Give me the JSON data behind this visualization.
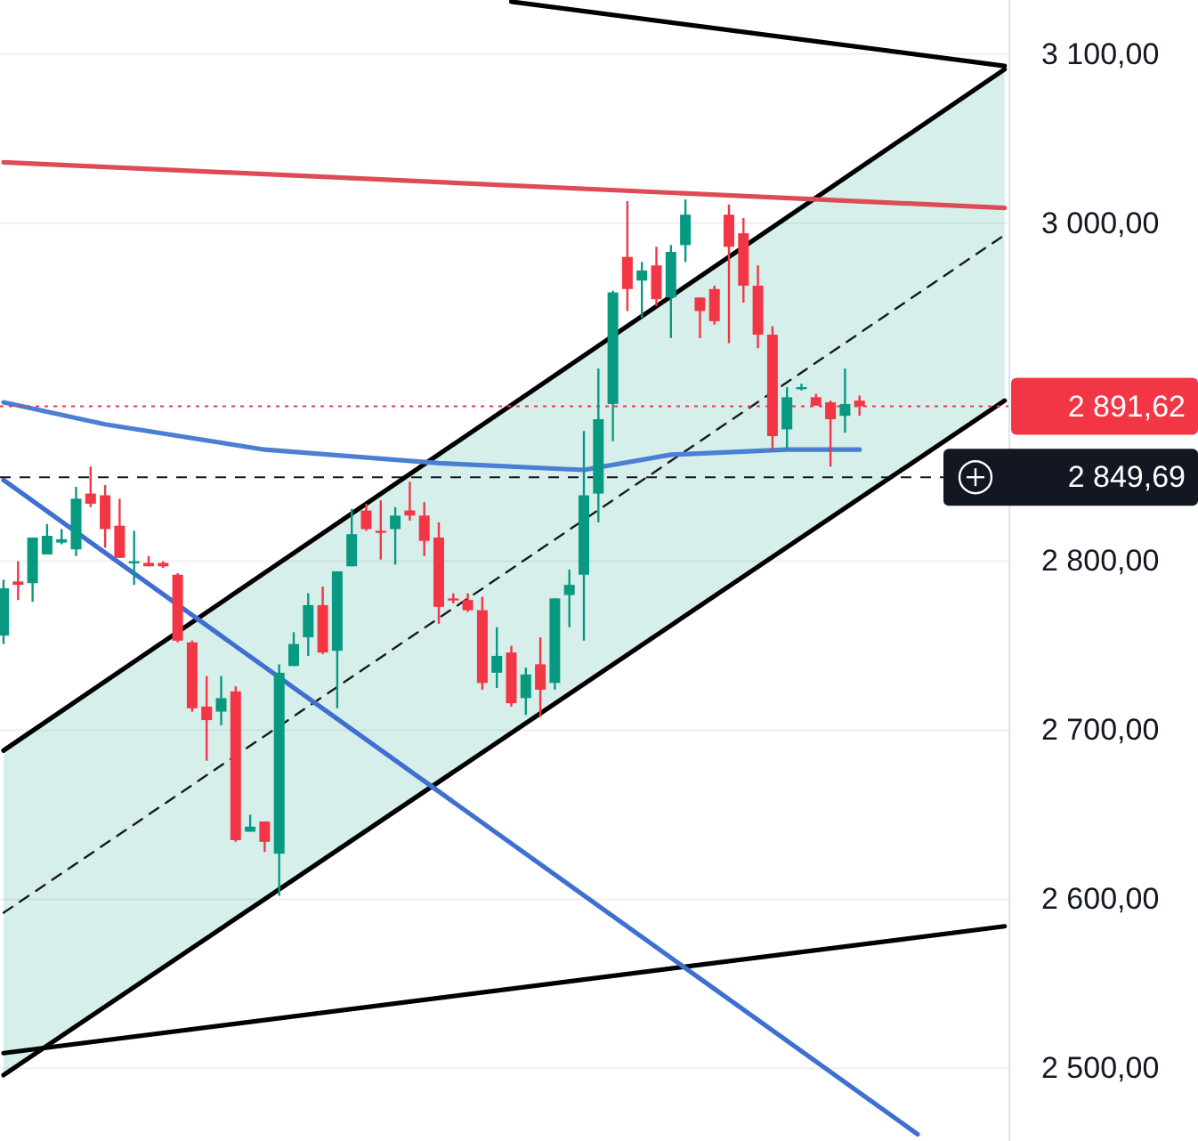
{
  "chart_data": {
    "type": "candlestick",
    "categories": [
      null,
      null,
      null,
      null,
      null,
      null,
      null,
      null,
      null,
      null,
      null,
      null,
      null,
      null,
      null,
      null,
      null,
      null,
      null,
      null,
      null,
      null,
      null,
      null,
      null,
      null,
      null,
      null,
      null,
      null,
      null,
      null,
      null,
      null,
      null,
      null,
      null,
      null,
      null,
      null,
      null,
      null,
      null,
      null,
      null,
      null,
      null,
      null,
      null,
      null,
      null,
      null,
      null,
      null,
      null,
      null,
      null,
      null,
      null,
      null,
      null,
      null,
      null,
      null,
      null,
      null,
      null,
      null,
      null,
      null
    ],
    "ohlc": [
      [
        2756,
        2789,
        2751,
        2784
      ],
      [
        2788,
        2800,
        2777,
        2786
      ],
      [
        2787,
        2814,
        2776,
        2814
      ],
      [
        2804,
        2822,
        2804,
        2815
      ],
      [
        2811,
        2819,
        2810,
        2813
      ],
      [
        2807,
        2844,
        2803,
        2837
      ],
      [
        2840,
        2856,
        2832,
        2834
      ],
      [
        2839,
        2845,
        2808,
        2819
      ],
      [
        2821,
        2837,
        2802,
        2802
      ],
      [
        2799,
        2818,
        2786,
        2800
      ],
      [
        2799,
        2803,
        2797,
        2797
      ],
      [
        2799,
        2800,
        2796,
        2797
      ],
      [
        2792,
        2793,
        2752,
        2753
      ],
      [
        2752,
        2753,
        2711,
        2713
      ],
      [
        2714,
        2732,
        2682,
        2706
      ],
      [
        2711,
        2732,
        2703,
        2719
      ],
      [
        2723,
        2726,
        2634,
        2635
      ],
      [
        2640,
        2650,
        2640,
        2643
      ],
      [
        2646,
        2646,
        2628,
        2634
      ],
      [
        2627,
        2739,
        2602,
        2734
      ],
      [
        2738,
        2758,
        2738,
        2751
      ],
      [
        2755,
        2781,
        2744,
        2774
      ],
      [
        2774,
        2785,
        2745,
        2746
      ],
      [
        2747,
        2794,
        2713,
        2794
      ],
      [
        2797,
        2831,
        2797,
        2816
      ],
      [
        2830,
        2834,
        2818,
        2819
      ],
      [
        2818,
        2836,
        2801,
        2817
      ],
      [
        2819,
        2832,
        2798,
        2827
      ],
      [
        2830,
        2847,
        2824,
        2827
      ],
      [
        2827,
        2835,
        2803,
        2812
      ],
      [
        2814,
        2823,
        2763,
        2773
      ],
      [
        2778,
        2781,
        2775,
        2777
      ],
      [
        2777,
        2781,
        2770,
        2771
      ],
      [
        2771,
        2779,
        2724,
        2728
      ],
      [
        2734,
        2761,
        2725,
        2744
      ],
      [
        2746,
        2750,
        2714,
        2716
      ],
      [
        2719,
        2737,
        2709,
        2733
      ],
      [
        2739,
        2755,
        2708,
        2724
      ],
      [
        2728,
        2778,
        2724,
        2778
      ],
      [
        2780,
        2795,
        2761,
        2786
      ],
      [
        2792,
        2877,
        2753,
        2839
      ],
      [
        2840,
        2914,
        2823,
        2884
      ],
      [
        2893,
        2960,
        2871,
        2959
      ],
      [
        2980,
        3013,
        2948,
        2961
      ],
      [
        2966,
        2977,
        2944,
        2972
      ],
      [
        2975,
        2986,
        2951,
        2955
      ],
      [
        2956,
        2987,
        2932,
        2983
      ],
      [
        2987,
        3014,
        2977,
        3005
      ],
      [
        2956,
        2956,
        2932,
        2948
      ],
      [
        2961,
        2963,
        2940,
        2942
      ],
      [
        3005,
        3011,
        2929,
        2986
      ],
      [
        2994,
        3003,
        2953,
        2963
      ],
      [
        2963,
        2975,
        2926,
        2934
      ],
      [
        2934,
        2939,
        2866,
        2874
      ],
      [
        2878,
        2903,
        2866,
        2897
      ],
      [
        2902,
        2905,
        2901,
        2903
      ],
      [
        2897,
        2899,
        2892,
        2892
      ],
      [
        2894,
        2895,
        2856,
        2884
      ],
      [
        2886,
        2914,
        2876,
        2893
      ],
      [
        2895,
        2898,
        2886,
        2891.62
      ],
      null,
      null,
      null,
      null,
      null,
      null,
      null,
      null,
      null,
      null
    ],
    "colors": [
      "#089981",
      "#f23645",
      "#089981",
      "#089981",
      "#089981",
      "#089981",
      "#f23645",
      "#f23645",
      "#f23645",
      "#089981",
      "#f23645",
      "#f23645",
      "#f23645",
      "#f23645",
      "#f23645",
      "#089981",
      "#f23645",
      "#089981",
      "#f23645",
      "#089981",
      "#089981",
      "#089981",
      "#f23645",
      "#089981",
      "#089981",
      "#f23645",
      "#f23645",
      "#089981",
      "#f23645",
      "#f23645",
      "#f23645",
      "#f23645",
      "#f23645",
      "#f23645",
      "#089981",
      "#f23645",
      "#089981",
      "#f23645",
      "#089981",
      "#089981",
      "#089981",
      "#089981",
      "#089981",
      "#f23645",
      "#089981",
      "#f23645",
      "#089981",
      "#089981",
      "#f23645",
      "#f23645",
      "#f23645",
      "#f23645",
      "#f23645",
      "#f23645",
      "#089981",
      "#089981",
      "#f23645",
      "#f23645",
      "#089981",
      "#f23645",
      null,
      null,
      null,
      null,
      null,
      null,
      null,
      null,
      null,
      null
    ],
    "series": [
      {
        "type": "line",
        "color": "#1a1a1a",
        "line_style": "dashed",
        "values": [
          2592,
          null,
          null,
          null,
          null,
          null,
          null,
          null,
          null,
          null,
          null,
          null,
          null,
          null,
          null,
          null,
          null,
          null,
          null,
          null,
          null,
          null,
          null,
          null,
          null,
          null,
          null,
          null,
          null,
          null,
          null,
          null,
          null,
          null,
          null,
          null,
          null,
          null,
          null,
          null,
          null,
          null,
          null,
          null,
          null,
          null,
          null,
          null,
          null,
          null,
          null,
          null,
          null,
          null,
          null,
          null,
          null,
          null,
          null,
          null,
          null,
          null,
          null,
          null,
          null,
          null,
          null,
          null,
          null,
          2993
        ],
        "lower": [
          2496,
          null,
          null,
          null,
          null,
          null,
          null,
          null,
          null,
          null,
          null,
          null,
          null,
          null,
          null,
          null,
          null,
          null,
          null,
          null,
          null,
          null,
          null,
          null,
          null,
          null,
          null,
          null,
          null,
          null,
          null,
          null,
          null,
          null,
          null,
          null,
          null,
          null,
          null,
          null,
          null,
          null,
          null,
          null,
          null,
          null,
          null,
          null,
          null,
          null,
          null,
          null,
          null,
          null,
          null,
          null,
          null,
          null,
          null,
          null,
          null,
          null,
          null,
          null,
          null,
          null,
          null,
          null,
          null,
          2895
        ],
        "upper": [
          2688,
          null,
          null,
          null,
          null,
          null,
          null,
          null,
          null,
          null,
          null,
          null,
          null,
          null,
          null,
          null,
          null,
          null,
          null,
          null,
          null,
          null,
          null,
          null,
          null,
          null,
          null,
          null,
          null,
          null,
          null,
          null,
          null,
          null,
          null,
          null,
          null,
          null,
          null,
          null,
          null,
          null,
          null,
          null,
          null,
          null,
          null,
          null,
          null,
          null,
          null,
          null,
          null,
          null,
          null,
          null,
          null,
          null,
          null,
          null,
          null,
          null,
          null,
          null,
          null,
          null,
          null,
          null,
          null,
          3091
        ]
      },
      {
        "type": "line",
        "color": "#000000",
        "line_style": "solid",
        "values": [
          2688,
          null,
          null,
          null,
          null,
          null,
          null,
          null,
          null,
          null,
          null,
          null,
          null,
          null,
          null,
          null,
          null,
          null,
          null,
          null,
          null,
          null,
          null,
          null,
          null,
          null,
          null,
          null,
          null,
          null,
          null,
          null,
          null,
          null,
          null,
          null,
          null,
          null,
          null,
          null,
          null,
          null,
          null,
          null,
          null,
          null,
          null,
          null,
          null,
          null,
          null,
          null,
          null,
          null,
          null,
          null,
          null,
          null,
          null,
          null,
          null,
          null,
          null,
          null,
          null,
          null,
          null,
          null,
          null,
          3091
        ]
      },
      {
        "type": "line",
        "color": "#000000",
        "line_style": "solid",
        "values": [
          2496,
          null,
          null,
          null,
          null,
          null,
          null,
          null,
          null,
          null,
          null,
          null,
          null,
          null,
          null,
          null,
          null,
          null,
          null,
          null,
          null,
          null,
          null,
          null,
          null,
          null,
          null,
          null,
          null,
          null,
          null,
          null,
          null,
          null,
          null,
          null,
          null,
          null,
          null,
          null,
          null,
          null,
          null,
          null,
          null,
          null,
          null,
          null,
          null,
          null,
          null,
          null,
          null,
          null,
          null,
          null,
          null,
          null,
          null,
          null,
          null,
          null,
          null,
          null,
          null,
          null,
          null,
          null,
          null,
          2895
        ]
      },
      {
        "type": "line",
        "color": "#000000",
        "line_style": "solid",
        "values": [
          null,
          null,
          null,
          null,
          null,
          null,
          null,
          null,
          null,
          null,
          null,
          null,
          null,
          null,
          null,
          null,
          null,
          null,
          null,
          null,
          null,
          null,
          null,
          null,
          null,
          null,
          null,
          null,
          null,
          null,
          null,
          null,
          null,
          null,
          null,
          3131,
          null,
          null,
          null,
          null,
          null,
          null,
          null,
          null,
          null,
          null,
          null,
          null,
          null,
          null,
          null,
          null,
          null,
          null,
          null,
          null,
          null,
          null,
          null,
          null,
          null,
          null,
          null,
          null,
          null,
          null,
          null,
          null,
          null,
          3093
        ]
      },
      {
        "type": "line",
        "color": "#000000",
        "line_style": "solid",
        "values": [
          2509,
          null,
          null,
          null,
          null,
          null,
          null,
          null,
          null,
          null,
          null,
          null,
          null,
          null,
          null,
          null,
          null,
          null,
          null,
          null,
          null,
          null,
          null,
          null,
          null,
          null,
          null,
          null,
          null,
          null,
          null,
          null,
          null,
          null,
          null,
          null,
          null,
          null,
          null,
          null,
          null,
          null,
          null,
          null,
          null,
          null,
          null,
          null,
          null,
          null,
          null,
          null,
          null,
          null,
          null,
          null,
          null,
          null,
          null,
          null,
          null,
          null,
          null,
          null,
          null,
          null,
          null,
          null,
          null,
          2584
        ]
      },
      {
        "type": "line",
        "color": "#dd4b55",
        "line_style": "solid",
        "values": [
          3036,
          null,
          null,
          null,
          null,
          null,
          null,
          null,
          null,
          null,
          null,
          null,
          null,
          null,
          null,
          null,
          null,
          null,
          null,
          null,
          null,
          null,
          null,
          null,
          null,
          null,
          null,
          null,
          null,
          null,
          null,
          null,
          null,
          null,
          null,
          null,
          null,
          null,
          null,
          null,
          null,
          null,
          null,
          null,
          null,
          null,
          null,
          null,
          null,
          null,
          null,
          null,
          null,
          null,
          null,
          null,
          null,
          null,
          null,
          null,
          null,
          null,
          null,
          null,
          null,
          null,
          null,
          null,
          null,
          3009
        ]
      },
      {
        "type": "line",
        "color": "#3f6fd1",
        "line_style": "solid",
        "values": [
          2848,
          null,
          null,
          null,
          null,
          null,
          null,
          null,
          null,
          null,
          null,
          null,
          null,
          null,
          null,
          null,
          null,
          null,
          null,
          null,
          null,
          null,
          null,
          null,
          null,
          null,
          null,
          null,
          null,
          null,
          null,
          null,
          null,
          null,
          null,
          null,
          null,
          null,
          null,
          null,
          null,
          null,
          null,
          null,
          null,
          null,
          null,
          null,
          null,
          null,
          null,
          null,
          null,
          null,
          null,
          null,
          null,
          null,
          null,
          null,
          null,
          null,
          null,
          2461,
          null,
          null,
          null,
          null,
          null,
          null
        ]
      },
      {
        "type": "line",
        "color": "#4a7fd4",
        "line_style": "solid",
        "values": [
          2894,
          null,
          null,
          null,
          null,
          null,
          null,
          2881,
          null,
          null,
          null,
          null,
          null,
          null,
          null,
          null,
          null,
          null,
          2866,
          null,
          null,
          null,
          null,
          null,
          null,
          null,
          null,
          null,
          null,
          null,
          2858,
          null,
          null,
          null,
          null,
          null,
          null,
          null,
          null,
          null,
          2854,
          null,
          null,
          null,
          null,
          null,
          2863,
          null,
          null,
          null,
          null,
          null,
          null,
          null,
          2866,
          null,
          null,
          null,
          null,
          2866,
          null,
          null,
          null,
          null,
          null,
          null,
          null,
          null,
          null,
          null
        ]
      }
    ],
    "ylim": [
      2457,
      3132
    ],
    "yticks": [
      {
        "value": 2500,
        "label": "2 500,00"
      },
      {
        "value": 2600,
        "label": "2 600,00"
      },
      {
        "value": 2700,
        "label": "2 700,00"
      },
      {
        "value": 2800,
        "label": "2 800,00"
      },
      {
        "value": 3000,
        "label": "3 000,00"
      },
      {
        "value": 3100,
        "label": "3 100,00"
      }
    ],
    "tick_labels": "y",
    "grid": "y",
    "ref_lines": [
      {
        "axis": "y",
        "value": 2891.62,
        "label": "2 891,62",
        "color": "#f23645",
        "line_style": "dotted"
      },
      {
        "axis": "y",
        "value": 2849.69,
        "label": "2 849,69",
        "color": "#131722",
        "line_style": "dashed"
      }
    ]
  }
}
